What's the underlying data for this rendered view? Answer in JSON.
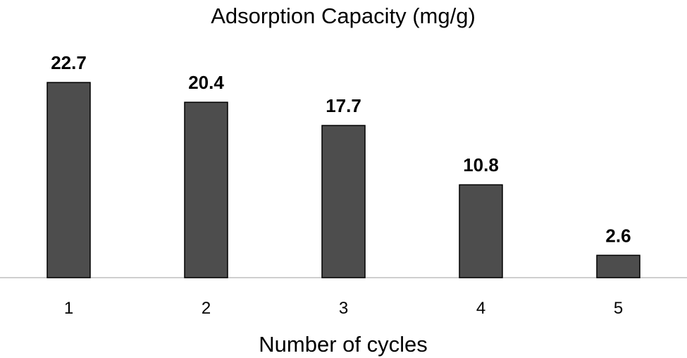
{
  "chart_data": {
    "type": "bar",
    "title": "Adsorption Capacity (mg/g)",
    "xlabel": "Number of cycles",
    "ylabel": "",
    "categories": [
      "1",
      "2",
      "3",
      "4",
      "5"
    ],
    "values": [
      22.7,
      20.4,
      17.7,
      10.8,
      2.6
    ],
    "data_labels": [
      "22.7",
      "20.4",
      "17.7",
      "10.8",
      "2.6"
    ],
    "ylim": [
      0,
      25
    ],
    "grid": false,
    "legend": "none",
    "bar_color": "#4d4d4d",
    "bar_edge_color": "#000000",
    "axis_color": "#bfbfbf"
  }
}
